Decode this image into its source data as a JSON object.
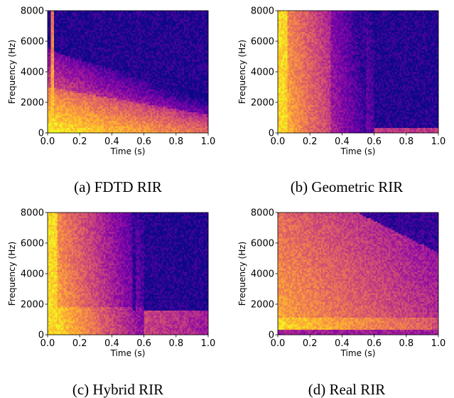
{
  "chart_data": [
    {
      "type": "heatmap",
      "caption": "(a) FDTD RIR",
      "xlabel": "Time (s)",
      "ylabel": "Frequency (Hz)",
      "xlim": [
        0.0,
        1.0
      ],
      "ylim": [
        0,
        8000
      ],
      "xticks": [
        "0.0",
        "0.2",
        "0.4",
        "0.6",
        "0.8",
        "1.0"
      ],
      "yticks": [
        "0",
        "2000",
        "4000",
        "6000",
        "8000"
      ],
      "colormap": "plasma",
      "decay": {
        "bright_cutoff_hz": 3000,
        "edge_start_hz": 5600,
        "edge_end_hz": 2600,
        "direct_sound_time_s": 0.03,
        "low_band_floor_end_hz": 400
      }
    },
    {
      "type": "heatmap",
      "caption": "(b) Geometric RIR",
      "xlabel": "Time (s)",
      "ylabel": "Frequency (Hz)",
      "xlim": [
        0.0,
        1.0
      ],
      "ylim": [
        0,
        8000
      ],
      "xticks": [
        "0.0",
        "0.2",
        "0.4",
        "0.6",
        "0.8",
        "1.0"
      ],
      "yticks": [
        "0",
        "2000",
        "4000",
        "6000",
        "8000"
      ],
      "colormap": "plasma",
      "decay": {
        "cutoff_time_s": 0.6,
        "full_band_until_s": 0.28,
        "low_band_floor_end_hz": 300
      }
    },
    {
      "type": "heatmap",
      "caption": "(c) Hybrid RIR",
      "xlabel": "Time (s)",
      "ylabel": "Frequency (Hz)",
      "xlim": [
        0.0,
        1.0
      ],
      "ylim": [
        0,
        8000
      ],
      "xticks": [
        "0.0",
        "0.2",
        "0.4",
        "0.6",
        "0.8",
        "1.0"
      ],
      "yticks": [
        "0",
        "2000",
        "4000",
        "6000",
        "8000"
      ],
      "colormap": "plasma",
      "decay": {
        "cutoff_time_s": 0.6,
        "full_band_until_s": 0.28,
        "low_region_hz": 1600,
        "low_region_end_s": 1.0
      }
    },
    {
      "type": "heatmap",
      "caption": "(d) Real RIR",
      "xlabel": "Time (s)",
      "ylabel": "Frequency (Hz)",
      "xlim": [
        0.0,
        1.0
      ],
      "ylim": [
        0,
        8000
      ],
      "xticks": [
        "0.0",
        "0.2",
        "0.4",
        "0.6",
        "0.8",
        "1.0"
      ],
      "yticks": [
        "0",
        "2000",
        "4000",
        "6000",
        "8000"
      ],
      "colormap": "plasma",
      "decay": {
        "edge_start_hz": 8000,
        "edge_end_hz": 5400,
        "edge_start_s": 0.5,
        "low_band_floor_end_hz": 300
      }
    }
  ]
}
